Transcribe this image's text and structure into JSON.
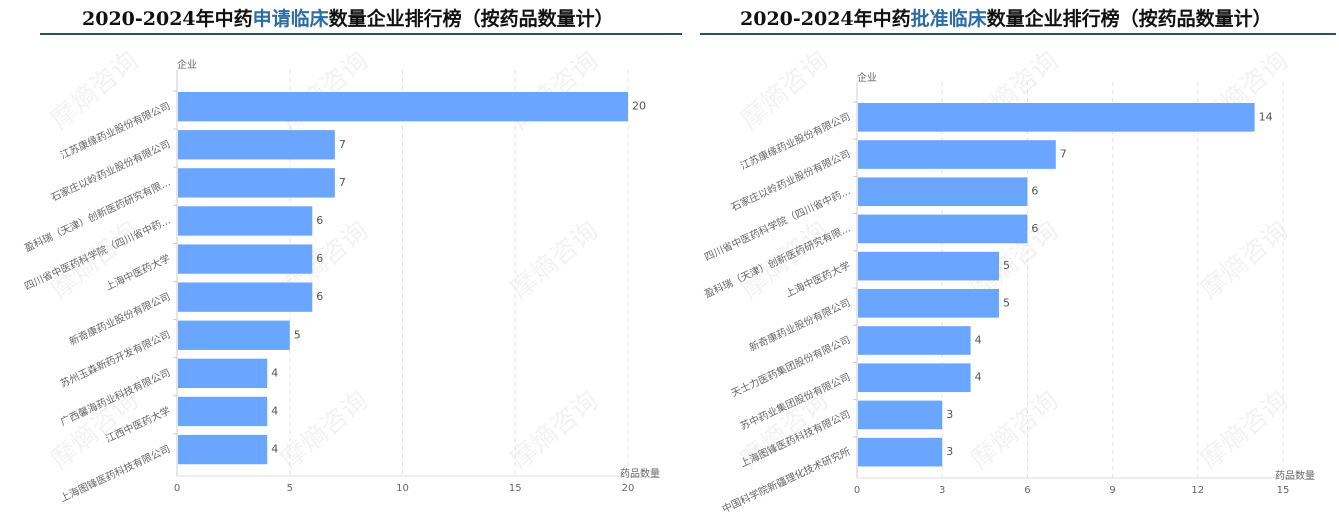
{
  "chart_data": [
    {
      "type": "bar",
      "orientation": "horizontal",
      "title": {
        "pre": "2020-2024年中药",
        "highlight": "申请临床",
        "post": "数量企业排行榜（按药品数量计）"
      },
      "ylabel": "企业",
      "xlabel": "药品数量",
      "xlim": [
        0,
        20
      ],
      "xticks": [
        0,
        5,
        10,
        15,
        20
      ],
      "grid": "vertical dashed",
      "categories": [
        "江苏康缘药业股份有限公司",
        "石家庄以岭药业股份有限公司",
        "盈科瑞（天津）创新医药研究有限...",
        "四川省中医药科学院（四川省中药...",
        "上海中医药大学",
        "新奇康药业股份有限公司",
        "苏州玉森新药开发有限公司",
        "广西馨海药业科技有限公司",
        "江西中医药大学",
        "上海图锋医药科技有限公司"
      ],
      "values": [
        20,
        7,
        7,
        6,
        6,
        6,
        5,
        4,
        4,
        4
      ]
    },
    {
      "type": "bar",
      "orientation": "horizontal",
      "title": {
        "pre": "2020-2024年中药",
        "highlight": "批准临床",
        "post": "数量企业排行榜（按药品数量计）"
      },
      "ylabel": "企业",
      "xlabel": "药品数量",
      "xlim": [
        0,
        15
      ],
      "xticks": [
        0,
        3,
        6,
        9,
        12,
        15
      ],
      "grid": "vertical dashed",
      "categories": [
        "江苏康缘药业股份有限公司",
        "石家庄以岭药业股份有限公司",
        "四川省中医药科学院（四川省中药...",
        "盈科瑞（天津）创新医药研究有限...",
        "上海中医药大学",
        "新奇康药业股份有限公司",
        "天士力医药集团股份有限公司",
        "苏中药业集团股份有限公司",
        "上海图锋医药科技有限公司",
        "中国科学院新疆理化技术研究所"
      ],
      "values": [
        14,
        7,
        6,
        6,
        5,
        5,
        4,
        4,
        3,
        3
      ]
    }
  ],
  "colors": {
    "bar": "#6aa6ff",
    "title_highlight": "#2e6ca4",
    "rule": "#2c4d6e"
  },
  "watermark": "摩熵咨询"
}
